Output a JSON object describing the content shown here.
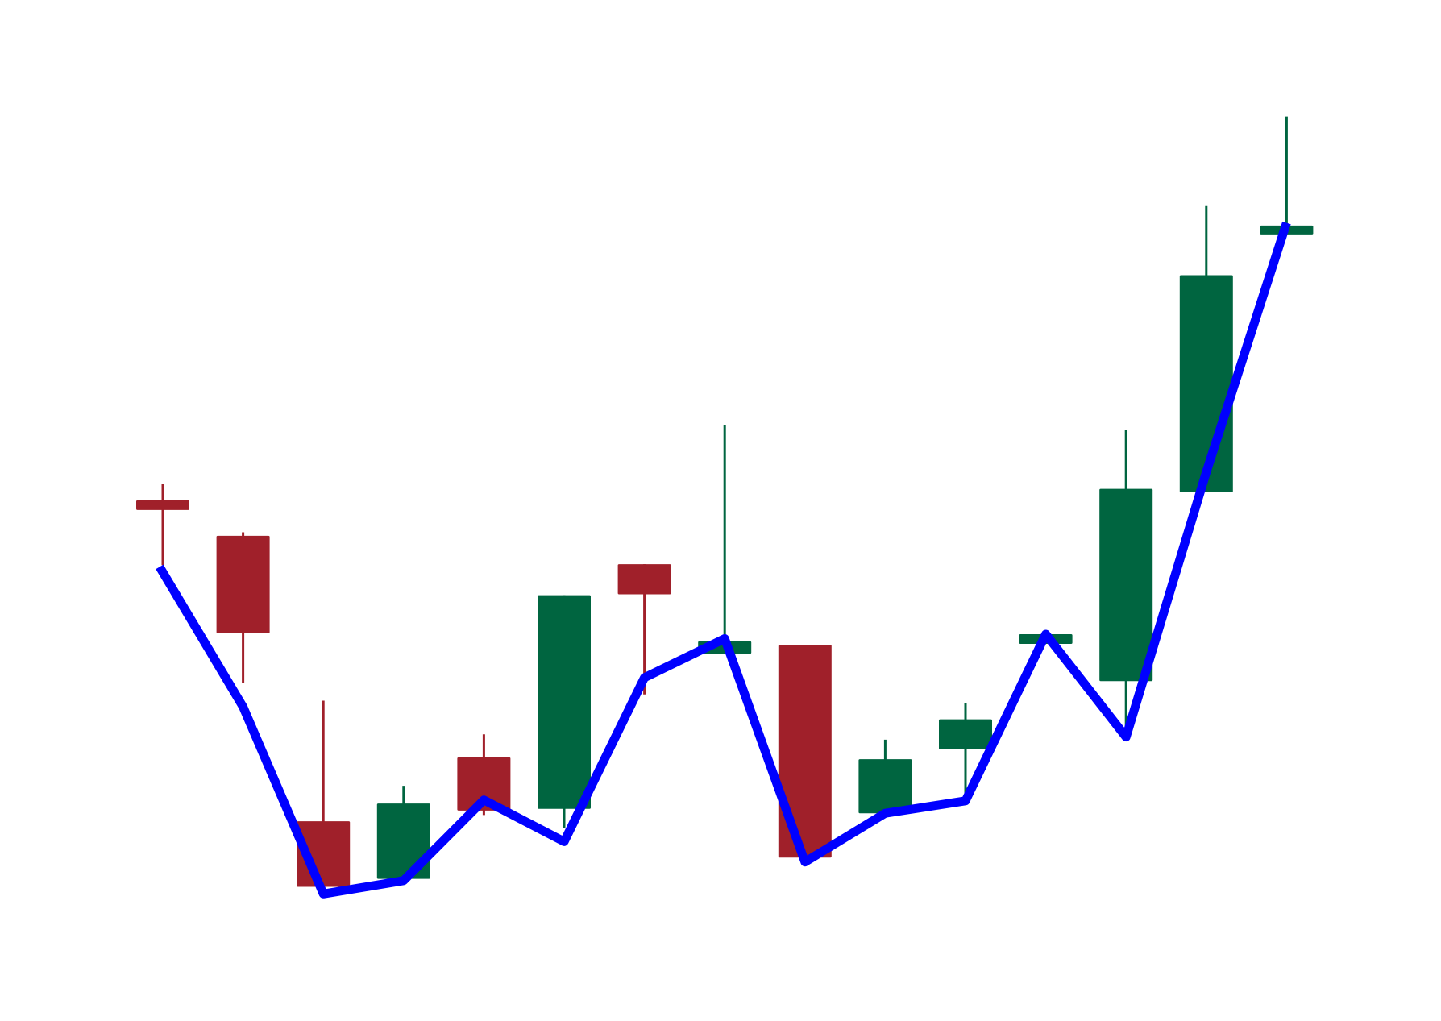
{
  "chart_data": {
    "type": "candlestick",
    "title": "",
    "xlabel": "",
    "ylabel": "",
    "axes_visible": false,
    "grid": false,
    "legend": "none",
    "ylim": [
      0,
      100
    ],
    "colors": {
      "up": "#006540",
      "down": "#a0202a",
      "line": "#0000ff",
      "background": "#ffffff"
    },
    "candles": [
      {
        "open": 51.1,
        "high": 53.0,
        "low": 43.8,
        "close": 50.2
      },
      {
        "open": 47.1,
        "high": 47.5,
        "low": 30.5,
        "close": 36.1
      },
      {
        "open": 14.9,
        "high": 28.5,
        "low": 7.5,
        "close": 7.5
      },
      {
        "open": 8.4,
        "high": 18.9,
        "low": 8.4,
        "close": 16.9
      },
      {
        "open": 22.1,
        "high": 24.7,
        "low": 15.6,
        "close": 16.1
      },
      {
        "open": 16.3,
        "high": 40.4,
        "low": 14.1,
        "close": 40.4
      },
      {
        "open": 43.9,
        "high": 43.9,
        "low": 29.2,
        "close": 40.5
      },
      {
        "open": 33.8,
        "high": 59.6,
        "low": 33.8,
        "close": 35.2
      },
      {
        "open": 34.8,
        "high": 34.8,
        "low": 10.8,
        "close": 10.8
      },
      {
        "open": 15.8,
        "high": 24.1,
        "low": 15.8,
        "close": 21.9
      },
      {
        "open": 23.0,
        "high": 28.2,
        "low": 17.3,
        "close": 26.4
      },
      {
        "open": 35.2,
        "high": 36.3,
        "low": 35.2,
        "close": 36.0
      },
      {
        "open": 30.7,
        "high": 59.0,
        "low": 24.9,
        "close": 52.4
      },
      {
        "open": 52.0,
        "high": 84.3,
        "low": 52.0,
        "close": 76.5
      },
      {
        "open": 82.1,
        "high": 94.4,
        "low": 81.2,
        "close": 82.1
      }
    ],
    "line_series": {
      "values": [
        43.6,
        27.8,
        6.7,
        8.2,
        17.3,
        12.6,
        31.1,
        35.5,
        10.3,
        15.8,
        17.2,
        36.0,
        24.4,
        54.3,
        82.4
      ]
    }
  }
}
